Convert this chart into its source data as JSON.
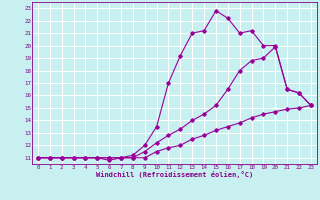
{
  "xlabel": "Windchill (Refroidissement éolien,°C)",
  "bg_color": "#c8f0f0",
  "line_color": "#990099",
  "grid_color": "#ffffff",
  "xlim": [
    -0.5,
    23.5
  ],
  "ylim": [
    10.5,
    23.5
  ],
  "xticks": [
    0,
    1,
    2,
    3,
    4,
    5,
    6,
    7,
    8,
    9,
    10,
    11,
    12,
    13,
    14,
    15,
    16,
    17,
    18,
    19,
    20,
    21,
    22,
    23
  ],
  "yticks": [
    11,
    12,
    13,
    14,
    15,
    16,
    17,
    18,
    19,
    20,
    21,
    22,
    23
  ],
  "line1_x": [
    0,
    1,
    2,
    3,
    4,
    5,
    6,
    7,
    8,
    9,
    10,
    11,
    12,
    13,
    14,
    15,
    16,
    17,
    18,
    19,
    20,
    21,
    22,
    23
  ],
  "line1_y": [
    11,
    11,
    11,
    11,
    11,
    11,
    11,
    11,
    11,
    11,
    11.5,
    11.8,
    12.0,
    12.5,
    12.8,
    13.2,
    13.5,
    13.8,
    14.2,
    14.5,
    14.7,
    14.9,
    15.0,
    15.2
  ],
  "line2_x": [
    0,
    1,
    2,
    3,
    4,
    5,
    6,
    7,
    8,
    9,
    10,
    11,
    12,
    13,
    14,
    15,
    16,
    17,
    18,
    19,
    20,
    21,
    22,
    23
  ],
  "line2_y": [
    11,
    11,
    11,
    11,
    11,
    11,
    11,
    11,
    11,
    11.5,
    12.2,
    12.8,
    13.3,
    14.0,
    14.5,
    15.2,
    16.5,
    18.0,
    18.8,
    19.0,
    19.9,
    16.5,
    16.2,
    15.2
  ],
  "line3_x": [
    0,
    1,
    2,
    3,
    4,
    5,
    6,
    7,
    8,
    9,
    10,
    11,
    12,
    13,
    14,
    15,
    16,
    17,
    18,
    19,
    20,
    21,
    22,
    23
  ],
  "line3_y": [
    11,
    11,
    11,
    11,
    11,
    11,
    10.8,
    11,
    11.2,
    12.0,
    13.5,
    17.0,
    19.2,
    21.0,
    21.2,
    22.8,
    22.2,
    21.0,
    21.2,
    20.0,
    20.0,
    16.5,
    16.2,
    15.2
  ]
}
